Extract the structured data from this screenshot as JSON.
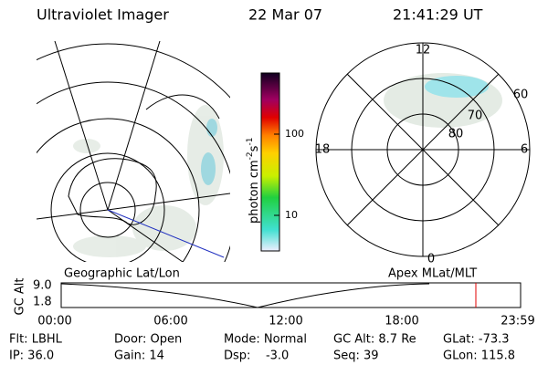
{
  "header": {
    "title": "Ultraviolet Imager",
    "date": "22 Mar 07",
    "time": "21:41:29 UT"
  },
  "colorbar": {
    "label": "photon cm",
    "exp1": "-2",
    "unit2": "s",
    "exp2": "-1",
    "ticks": [
      "100",
      "10"
    ]
  },
  "left_panel": {
    "label": "Geographic Lat/Lon"
  },
  "right_panel": {
    "label": "Apex MLat/MLT",
    "mlt": [
      "12",
      "18",
      "6",
      "0"
    ],
    "mlat": [
      "60",
      "70",
      "80"
    ]
  },
  "timeline": {
    "y_label": "GC Alt",
    "yticks": [
      "9.0",
      "1.8"
    ],
    "xticks": [
      "00:00",
      "06:00",
      "12:00",
      "18:00",
      "23:59"
    ]
  },
  "footer": {
    "columns": [
      [
        "Flt: LBHL",
        "IP: 36.0"
      ],
      [
        "Door: Open",
        "Gain: 14"
      ],
      [
        "Mode: Normal",
        "Dsp:    -3.0"
      ],
      [
        "GC Alt: 8.7 Re",
        "Seq: 39"
      ],
      [
        "GLat: -73.3",
        "GLon: 115.8"
      ]
    ]
  }
}
